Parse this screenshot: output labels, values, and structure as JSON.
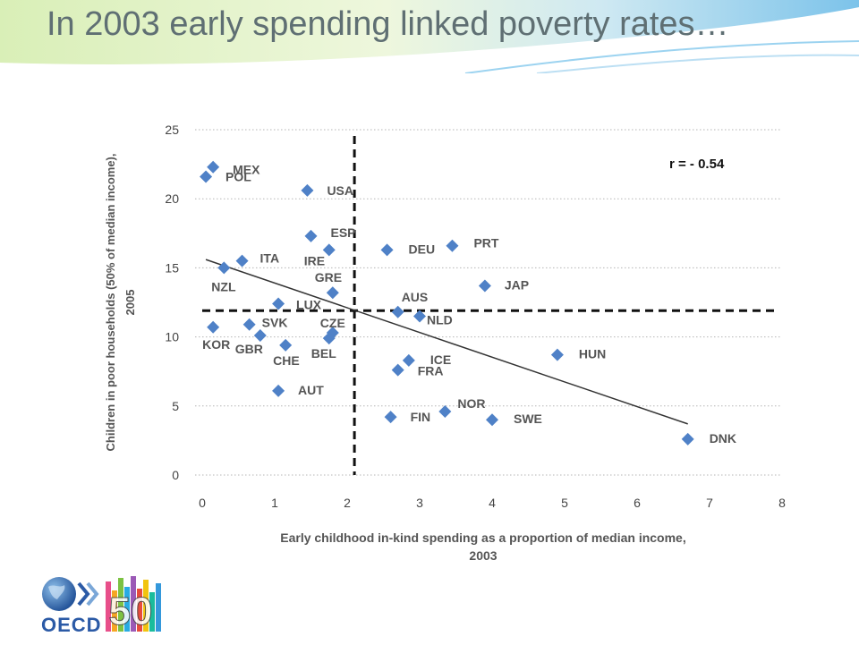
{
  "slide": {
    "title": "In 2003 early spending linked poverty rates…"
  },
  "logo": {
    "text": "OECD",
    "number": "50"
  },
  "colors": {
    "title": "#5f6f73",
    "marker": "#4f81c7",
    "banner_light": "#e6f3c8",
    "banner_blue": "#8ec9ea"
  },
  "chart_data": {
    "type": "scatter",
    "xlabel": "Early childhood in-kind spending as a proportion of median income, 2003",
    "xlabel_lines": [
      "Early childhood in-kind spending as a proportion of median income,",
      "2003"
    ],
    "ylabel": "Children in poor households (50% of median income), 2005",
    "ylabel_lines": [
      "Children in poor households (50% of median income),",
      "2005"
    ],
    "xlim": [
      0,
      8
    ],
    "ylim": [
      0,
      25
    ],
    "xticks": [
      0,
      1,
      2,
      3,
      4,
      5,
      6,
      7,
      8
    ],
    "yticks": [
      0,
      5,
      10,
      15,
      20,
      25
    ],
    "grid": "horizontal dotted",
    "annotation": "r = - 0.54",
    "reference_lines": {
      "x": 2.1,
      "y": 11.9
    },
    "trendline": {
      "x": [
        0.05,
        6.7
      ],
      "y": [
        15.6,
        3.7
      ]
    },
    "points": [
      {
        "label": "MEX",
        "x": 0.15,
        "y": 22.3
      },
      {
        "label": "POL",
        "x": 0.05,
        "y": 21.6
      },
      {
        "label": "USA",
        "x": 1.45,
        "y": 20.6
      },
      {
        "label": "ESP",
        "x": 1.5,
        "y": 17.3
      },
      {
        "label": "IRE",
        "x": 1.75,
        "y": 16.3
      },
      {
        "label": "DEU",
        "x": 2.55,
        "y": 16.3
      },
      {
        "label": "PRT",
        "x": 3.45,
        "y": 16.6
      },
      {
        "label": "ITA",
        "x": 0.55,
        "y": 15.5
      },
      {
        "label": "NZL",
        "x": 0.3,
        "y": 15.0
      },
      {
        "label": "GRE",
        "x": 1.8,
        "y": 13.2
      },
      {
        "label": "JAP",
        "x": 3.9,
        "y": 13.7
      },
      {
        "label": "LUX",
        "x": 1.05,
        "y": 12.4
      },
      {
        "label": "AUS",
        "x": 2.7,
        "y": 11.8
      },
      {
        "label": "NLD",
        "x": 3.0,
        "y": 11.5
      },
      {
        "label": "KOR",
        "x": 0.15,
        "y": 10.7
      },
      {
        "label": "SVK",
        "x": 0.65,
        "y": 10.9
      },
      {
        "label": "CZE",
        "x": 1.8,
        "y": 10.3
      },
      {
        "label": "GBR",
        "x": 0.8,
        "y": 10.1
      },
      {
        "label": "CHE",
        "x": 1.15,
        "y": 9.4
      },
      {
        "label": "BEL",
        "x": 1.75,
        "y": 9.9
      },
      {
        "label": "HUN",
        "x": 4.9,
        "y": 8.7
      },
      {
        "label": "ICE",
        "x": 2.85,
        "y": 8.3
      },
      {
        "label": "FRA",
        "x": 2.7,
        "y": 7.6
      },
      {
        "label": "AUT",
        "x": 1.05,
        "y": 6.1
      },
      {
        "label": "NOR",
        "x": 3.35,
        "y": 4.6
      },
      {
        "label": "FIN",
        "x": 2.6,
        "y": 4.2
      },
      {
        "label": "SWE",
        "x": 4.0,
        "y": 4.0
      },
      {
        "label": "DNK",
        "x": 6.7,
        "y": 2.6
      }
    ]
  }
}
